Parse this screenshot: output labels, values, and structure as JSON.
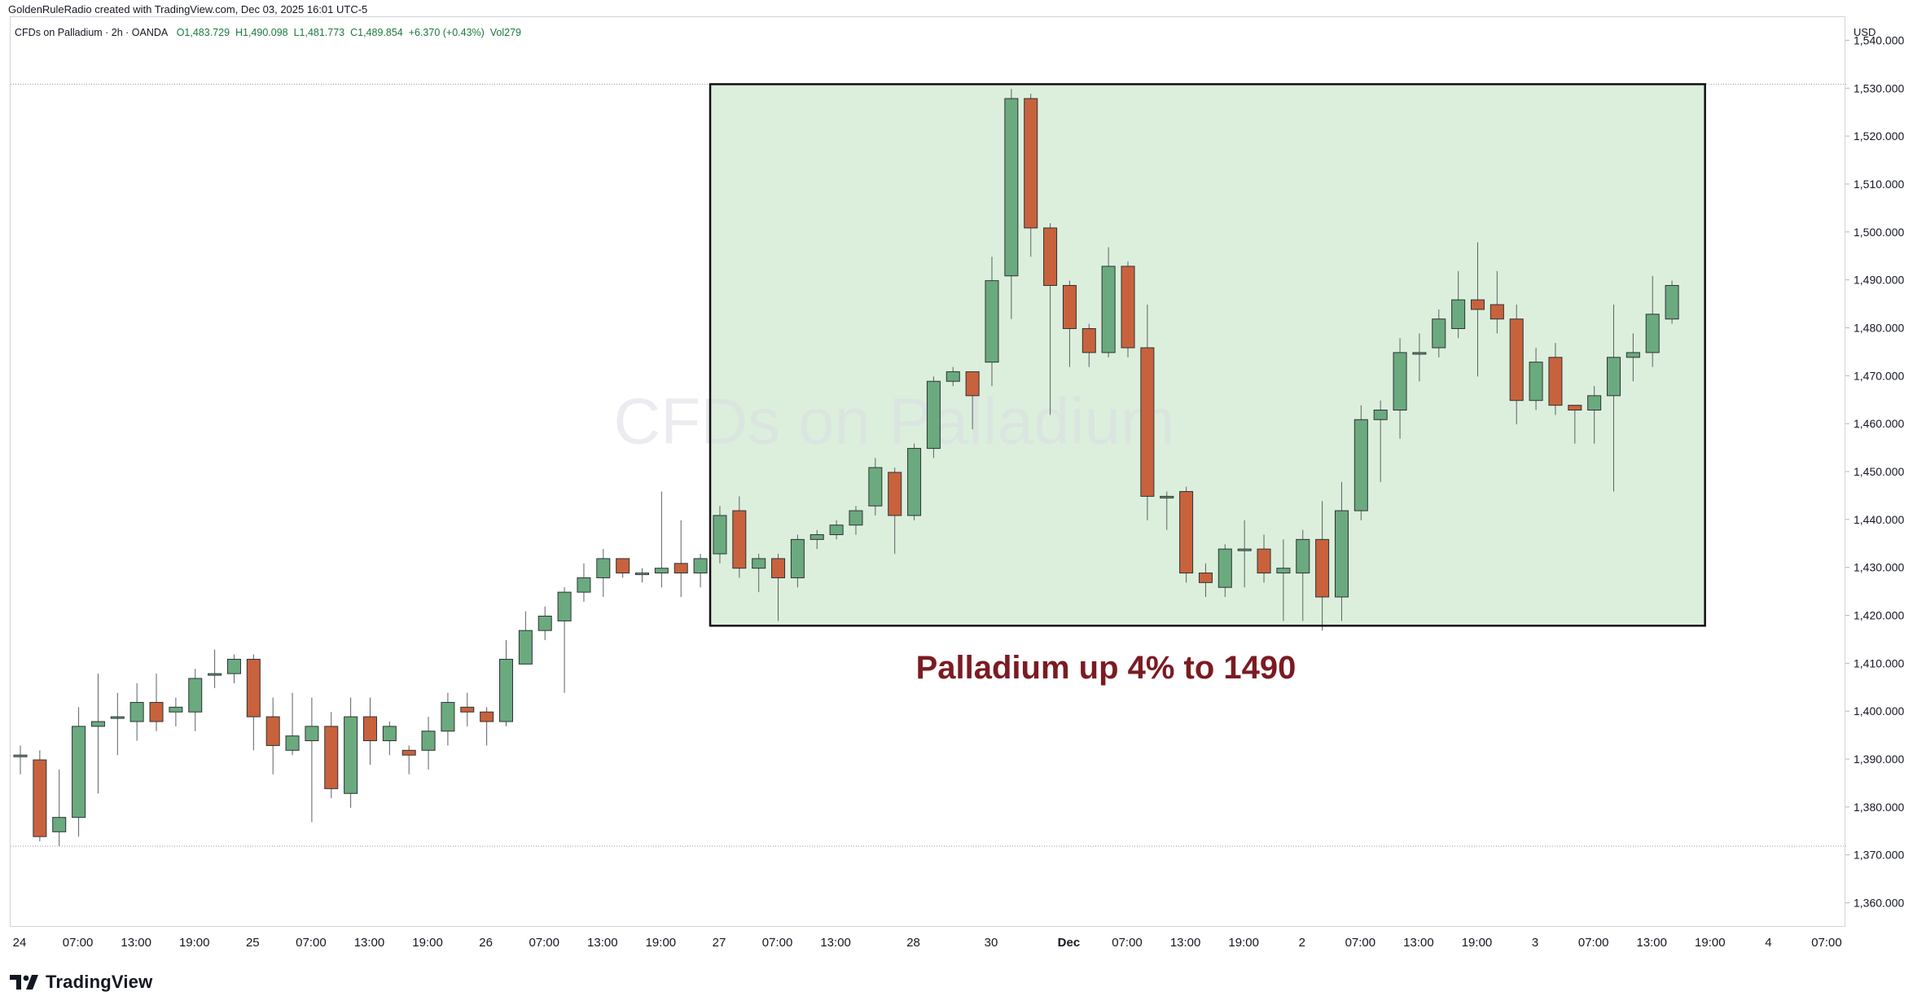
{
  "header": {
    "caption": "GoldenRuleRadio created with TradingView.com, Dec 03, 2025 16:01 UTC-5",
    "symbol": "CFDs on Palladium · 2h · OANDA",
    "open": "O1,483.729",
    "high": "H1,490.098",
    "low": "L1,481.773",
    "close": "C1,489.854",
    "change": "+6.370 (+0.43%)",
    "volume": "Vol279"
  },
  "watermark": "CFDs on Palladium",
  "annotation": "Palladium up 4% to 1490",
  "brand": "TradingView",
  "colors": {
    "up": "#6aaa7e",
    "down": "#c8623d",
    "box_fill": "#dcefdc",
    "annotation": "#7b1b22"
  },
  "chart_data": {
    "type": "candlestick",
    "currency": "USD",
    "ylim": [
      1355,
      1545
    ],
    "y_ticks": [
      1360,
      1370,
      1380,
      1390,
      1400,
      1410,
      1420,
      1430,
      1440,
      1450,
      1460,
      1470,
      1480,
      1490,
      1500,
      1510,
      1520,
      1530,
      1540
    ],
    "y_tick_labels": [
      "1,360.000",
      "1,370.000",
      "1,380.000",
      "1,390.000",
      "1,400.000",
      "1,410.000",
      "1,420.000",
      "1,430.000",
      "1,440.000",
      "1,450.000",
      "1,460.000",
      "1,470.000",
      "1,480.000",
      "1,490.000",
      "1,500.000",
      "1,510.000",
      "1,520.000",
      "1,530.000",
      "1,540.000"
    ],
    "x_labels": [
      {
        "i": 0,
        "label": "24"
      },
      {
        "i": 3,
        "label": "07:00"
      },
      {
        "i": 6,
        "label": "13:00"
      },
      {
        "i": 9,
        "label": "19:00"
      },
      {
        "i": 12,
        "label": "25"
      },
      {
        "i": 15,
        "label": "07:00"
      },
      {
        "i": 18,
        "label": "13:00"
      },
      {
        "i": 21,
        "label": "19:00"
      },
      {
        "i": 24,
        "label": "26"
      },
      {
        "i": 27,
        "label": "07:00"
      },
      {
        "i": 30,
        "label": "13:00"
      },
      {
        "i": 33,
        "label": "19:00"
      },
      {
        "i": 36,
        "label": "27"
      },
      {
        "i": 39,
        "label": "07:00"
      },
      {
        "i": 42,
        "label": "13:00"
      },
      {
        "i": 46,
        "label": "28"
      },
      {
        "i": 50,
        "label": "30"
      },
      {
        "i": 54,
        "label": "Dec"
      },
      {
        "i": 57,
        "label": "07:00"
      },
      {
        "i": 60,
        "label": "13:00"
      },
      {
        "i": 63,
        "label": "19:00"
      },
      {
        "i": 66,
        "label": "2"
      },
      {
        "i": 69,
        "label": "07:00"
      },
      {
        "i": 72,
        "label": "13:00"
      },
      {
        "i": 75,
        "label": "19:00"
      },
      {
        "i": 78,
        "label": "3"
      },
      {
        "i": 81,
        "label": "07:00"
      },
      {
        "i": 84,
        "label": "13:00"
      },
      {
        "i": 87,
        "label": "19:00"
      },
      {
        "i": 90,
        "label": "4"
      },
      {
        "i": 93,
        "label": "07:00"
      }
    ],
    "reference_lines": [
      1531,
      1372
    ],
    "highlight_box": {
      "i_start": 35.5,
      "i_end": 86.7,
      "y_low": 1418,
      "y_high": 1531
    },
    "candles": [
      [
        1391,
        1391,
        1393,
        1387
      ],
      [
        1390,
        1374,
        1392,
        1373
      ],
      [
        1375,
        1378,
        1388,
        1372
      ],
      [
        1378,
        1397,
        1401,
        1374
      ],
      [
        1397,
        1398,
        1408,
        1383
      ],
      [
        1399,
        1399,
        1404,
        1391
      ],
      [
        1398,
        1402,
        1406,
        1394
      ],
      [
        1402,
        1398,
        1408,
        1396
      ],
      [
        1400,
        1401,
        1403,
        1397
      ],
      [
        1400,
        1407,
        1409,
        1396
      ],
      [
        1408,
        1408,
        1413,
        1405
      ],
      [
        1408,
        1411,
        1412,
        1406
      ],
      [
        1411,
        1399,
        1412,
        1392
      ],
      [
        1399,
        1393,
        1403,
        1387
      ],
      [
        1392,
        1395,
        1404,
        1391
      ],
      [
        1394,
        1397,
        1403,
        1377
      ],
      [
        1397,
        1384,
        1400,
        1382
      ],
      [
        1383,
        1399,
        1403,
        1380
      ],
      [
        1399,
        1394,
        1403,
        1389
      ],
      [
        1394,
        1397,
        1398,
        1391
      ],
      [
        1392,
        1391,
        1393,
        1387
      ],
      [
        1392,
        1396,
        1399,
        1388
      ],
      [
        1396,
        1402,
        1404,
        1393
      ],
      [
        1401,
        1400,
        1404,
        1397
      ],
      [
        1400,
        1398,
        1401,
        1393
      ],
      [
        1398,
        1411,
        1415,
        1397
      ],
      [
        1410,
        1417,
        1421,
        1411
      ],
      [
        1417,
        1420,
        1422,
        1415
      ],
      [
        1419,
        1425,
        1426,
        1404
      ],
      [
        1425,
        1428,
        1431,
        1423
      ],
      [
        1428,
        1432,
        1434,
        1424
      ],
      [
        1432,
        1429,
        1432,
        1428
      ],
      [
        1429,
        1429,
        1430,
        1427
      ],
      [
        1429,
        1430,
        1446,
        1426
      ],
      [
        1431,
        1429,
        1440,
        1424
      ],
      [
        1429,
        1432,
        1433,
        1426
      ],
      [
        1433,
        1441,
        1443,
        1431
      ],
      [
        1442,
        1430,
        1445,
        1428
      ],
      [
        1430,
        1432,
        1433,
        1425
      ],
      [
        1432,
        1428,
        1433,
        1419
      ],
      [
        1428,
        1436,
        1437,
        1426
      ],
      [
        1436,
        1437,
        1438,
        1434
      ],
      [
        1437,
        1439,
        1440,
        1436
      ],
      [
        1439,
        1442,
        1443,
        1437
      ],
      [
        1443,
        1451,
        1453,
        1441
      ],
      [
        1450,
        1441,
        1451,
        1433
      ],
      [
        1441,
        1455,
        1456,
        1440
      ],
      [
        1455,
        1469,
        1470,
        1453
      ],
      [
        1469,
        1471,
        1472,
        1468
      ],
      [
        1471,
        1466,
        1471,
        1459
      ],
      [
        1473,
        1490,
        1495,
        1468
      ],
      [
        1491,
        1528,
        1530,
        1482
      ],
      [
        1528,
        1501,
        1529,
        1495
      ],
      [
        1501,
        1489,
        1502,
        1462
      ],
      [
        1489,
        1480,
        1490,
        1472
      ],
      [
        1480,
        1475,
        1481,
        1472
      ],
      [
        1475,
        1493,
        1497,
        1474
      ],
      [
        1493,
        1476,
        1494,
        1474
      ],
      [
        1476,
        1445,
        1485,
        1440
      ],
      [
        1445,
        1445,
        1446,
        1438
      ],
      [
        1446,
        1429,
        1447,
        1427
      ],
      [
        1429,
        1427,
        1431,
        1424
      ],
      [
        1426,
        1434,
        1435,
        1424
      ],
      [
        1434,
        1434,
        1440,
        1426
      ],
      [
        1434,
        1429,
        1437,
        1427
      ],
      [
        1429,
        1430,
        1436,
        1419
      ],
      [
        1429,
        1436,
        1438,
        1419
      ],
      [
        1436,
        1424,
        1444,
        1417
      ],
      [
        1424,
        1442,
        1448,
        1419
      ],
      [
        1442,
        1461,
        1464,
        1440
      ],
      [
        1461,
        1463,
        1465,
        1448
      ],
      [
        1463,
        1475,
        1478,
        1457
      ],
      [
        1475,
        1475,
        1479,
        1469
      ],
      [
        1476,
        1482,
        1484,
        1474
      ],
      [
        1480,
        1486,
        1492,
        1478
      ],
      [
        1486,
        1484,
        1498,
        1470
      ],
      [
        1485,
        1482,
        1492,
        1479
      ],
      [
        1482,
        1465,
        1485,
        1460
      ],
      [
        1465,
        1473,
        1476,
        1463
      ],
      [
        1474,
        1464,
        1477,
        1462
      ],
      [
        1464,
        1463,
        1464,
        1456
      ],
      [
        1463,
        1466,
        1468,
        1456
      ],
      [
        1466,
        1474,
        1485,
        1446
      ],
      [
        1474,
        1475,
        1479,
        1469
      ],
      [
        1475,
        1483,
        1491,
        1472
      ],
      [
        1482,
        1489,
        1490,
        1481
      ]
    ]
  },
  "icons": [
    "tradingview-logo-icon"
  ]
}
